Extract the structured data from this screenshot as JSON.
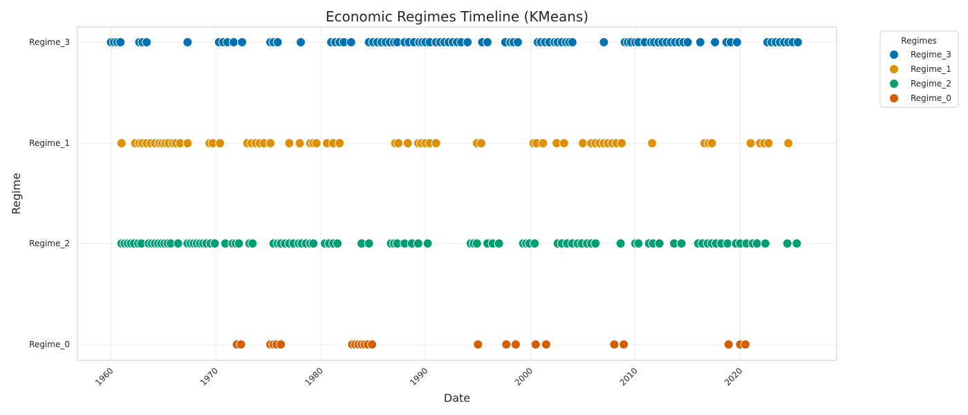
{
  "chart_data": {
    "type": "scatter",
    "title": "Economic Regimes Timeline (KMeans)",
    "xlabel": "Date",
    "ylabel": "Regime",
    "xlim": [
      1956.8,
      2029.2
    ],
    "x_ticks": [
      1960,
      1970,
      1980,
      1990,
      2000,
      2010,
      2020
    ],
    "categories": [
      "Regime_0",
      "Regime_2",
      "Regime_1",
      "Regime_3"
    ],
    "grid": true,
    "legend": {
      "title": "Regimes",
      "placement": "outside-top-right",
      "entries": [
        "Regime_3",
        "Regime_1",
        "Regime_2",
        "Regime_0"
      ]
    },
    "series": [
      {
        "name": "Regime_3",
        "color": "#0173b2",
        "values": [
          1960.0,
          1960.3,
          1960.6,
          1960.9,
          1962.7,
          1963.0,
          1963.4,
          1967.3,
          1970.3,
          1970.7,
          1971.1,
          1971.7,
          1972.5,
          1975.2,
          1975.5,
          1975.9,
          1978.1,
          1981.0,
          1981.4,
          1981.8,
          1982.2,
          1982.9,
          1984.6,
          1985.0,
          1985.4,
          1985.8,
          1986.2,
          1986.6,
          1987.0,
          1987.3,
          1988.0,
          1988.4,
          1988.9,
          1989.4,
          1989.7,
          1990.0,
          1990.4,
          1991.0,
          1991.4,
          1991.8,
          1992.2,
          1992.6,
          1993.0,
          1993.4,
          1994.0,
          1995.4,
          1995.9,
          1997.6,
          1998.1,
          1998.4,
          1998.8,
          2000.7,
          2001.0,
          2001.4,
          2001.8,
          2002.3,
          2002.6,
          2003.0,
          2003.4,
          2003.7,
          2004.0,
          2007.0,
          2009.0,
          2009.3,
          2009.6,
          2010.0,
          2010.3,
          2010.9,
          2011.5,
          2011.8,
          2012.2,
          2012.6,
          2013.0,
          2013.4,
          2013.8,
          2014.2,
          2014.6,
          2015.0,
          2016.2,
          2017.6,
          2018.7,
          2019.1,
          2019.7,
          2022.6,
          2023.0,
          2023.4,
          2023.8,
          2024.2,
          2024.6,
          2025.0,
          2025.5
        ]
      },
      {
        "name": "Regime_1",
        "color": "#de8f05",
        "values": [
          1961.0,
          1962.3,
          1962.7,
          1963.0,
          1963.4,
          1963.8,
          1964.2,
          1964.6,
          1964.9,
          1965.2,
          1965.5,
          1965.9,
          1966.2,
          1966.6,
          1967.3,
          1969.4,
          1969.7,
          1970.4,
          1973.0,
          1973.4,
          1973.8,
          1974.2,
          1974.6,
          1975.2,
          1977.0,
          1978.0,
          1979.0,
          1979.3,
          1979.6,
          1980.6,
          1981.2,
          1981.8,
          1987.1,
          1987.4,
          1988.3,
          1989.3,
          1989.6,
          1990.0,
          1990.4,
          1991.0,
          1994.9,
          1995.3,
          2000.3,
          2000.6,
          2001.2,
          2002.5,
          2003.2,
          2005.0,
          2005.8,
          2006.2,
          2006.6,
          2007.0,
          2007.4,
          2007.8,
          2008.2,
          2008.7,
          2011.6,
          2016.6,
          2017.0,
          2017.3,
          2021.0,
          2021.9,
          2022.3,
          2022.7,
          2024.6
        ]
      },
      {
        "name": "Regime_2",
        "color": "#029e73",
        "values": [
          1961.0,
          1961.3,
          1961.6,
          1961.9,
          1962.2,
          1962.6,
          1962.9,
          1963.6,
          1963.9,
          1964.2,
          1964.5,
          1964.8,
          1965.1,
          1965.4,
          1965.7,
          1966.4,
          1967.3,
          1967.6,
          1967.9,
          1968.2,
          1968.5,
          1968.8,
          1969.1,
          1969.5,
          1969.9,
          1970.9,
          1971.6,
          1971.9,
          1972.2,
          1973.2,
          1973.5,
          1975.5,
          1975.9,
          1976.2,
          1976.6,
          1977.0,
          1977.4,
          1977.9,
          1978.2,
          1978.6,
          1979.0,
          1979.3,
          1980.4,
          1980.8,
          1981.2,
          1981.6,
          1983.9,
          1984.6,
          1986.7,
          1987.0,
          1987.3,
          1988.0,
          1988.7,
          1989.3,
          1990.2,
          1994.3,
          1994.6,
          1994.9,
          1995.9,
          1996.4,
          1997.0,
          1999.3,
          1999.6,
          1999.9,
          2000.4,
          2002.6,
          2003.0,
          2003.5,
          2004.0,
          2004.5,
          2004.9,
          2005.4,
          2005.8,
          2006.2,
          2008.6,
          2010.0,
          2010.3,
          2011.3,
          2011.7,
          2012.3,
          2013.7,
          2014.4,
          2016.0,
          2016.4,
          2016.9,
          2017.3,
          2017.7,
          2018.2,
          2018.8,
          2019.6,
          2020.0,
          2020.6,
          2021.2,
          2021.6,
          2022.4,
          2024.5,
          2025.4
        ]
      },
      {
        "name": "Regime_0",
        "color": "#d55e00",
        "values": [
          1972.0,
          1972.4,
          1975.2,
          1975.5,
          1975.8,
          1976.2,
          1983.0,
          1983.3,
          1983.6,
          1983.9,
          1984.2,
          1984.5,
          1984.9,
          1995.0,
          1997.7,
          1998.6,
          2000.5,
          2001.5,
          2008.0,
          2008.9,
          2018.9,
          2020.0,
          2020.5
        ]
      }
    ]
  }
}
